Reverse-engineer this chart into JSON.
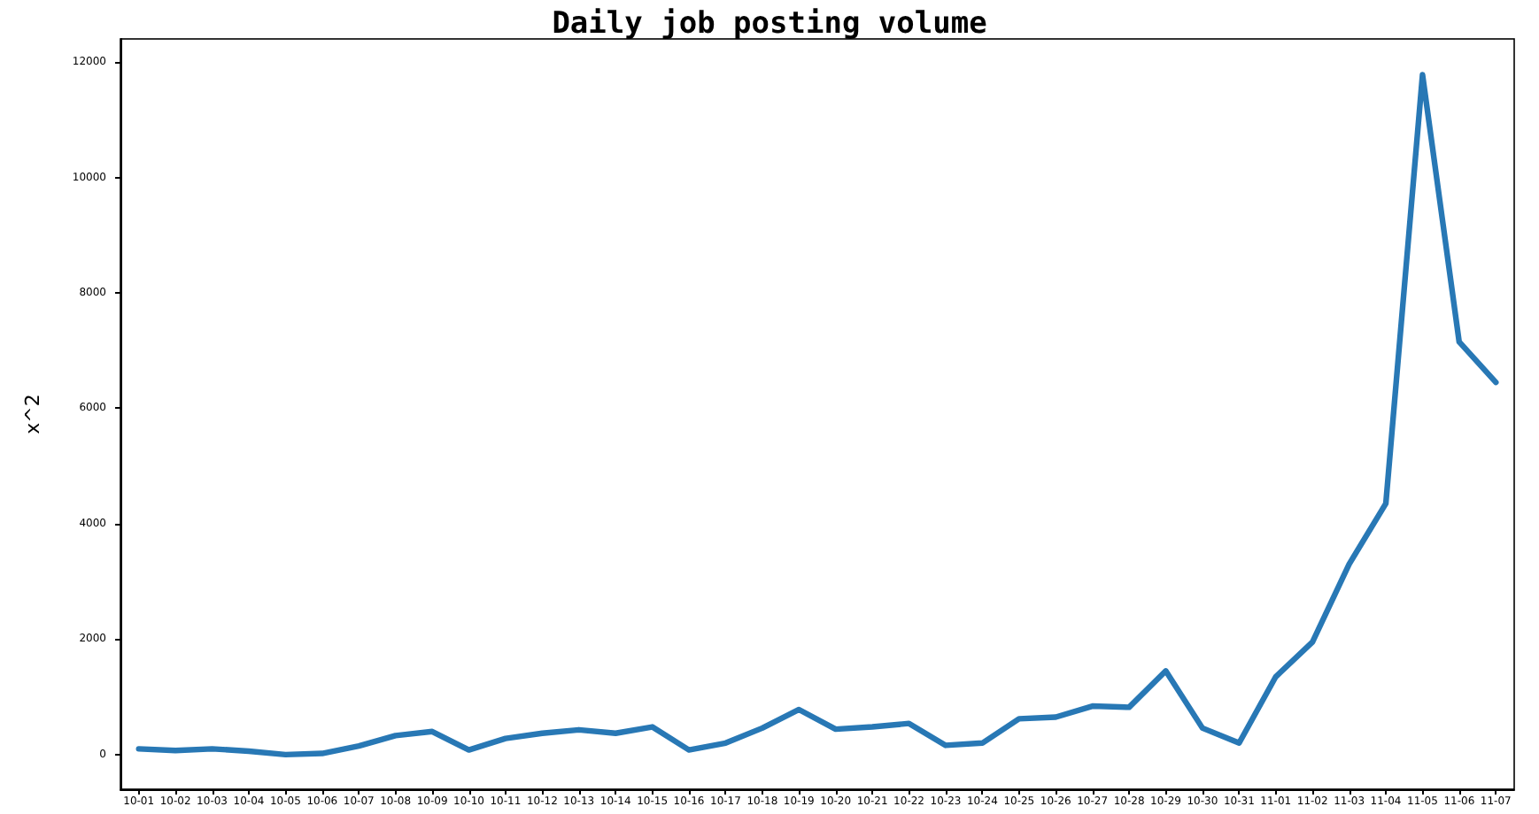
{
  "chart_data": {
    "type": "line",
    "title": "Daily job posting volume",
    "ylabel": "x^2",
    "categories": [
      "10-01",
      "10-02",
      "10-03",
      "10-04",
      "10-05",
      "10-06",
      "10-07",
      "10-08",
      "10-09",
      "10-10",
      "10-11",
      "10-12",
      "10-13",
      "10-14",
      "10-15",
      "10-16",
      "10-17",
      "10-18",
      "10-19",
      "10-20",
      "10-21",
      "10-22",
      "10-23",
      "10-24",
      "10-25",
      "10-26",
      "10-27",
      "10-28",
      "10-29",
      "10-30",
      "10-31",
      "11-01",
      "11-02",
      "11-03",
      "11-04",
      "11-05",
      "11-06",
      "11-07"
    ],
    "series": [
      {
        "color": "#2878b5",
        "values": [
          100,
          70,
          100,
          60,
          0,
          20,
          150,
          330,
          400,
          80,
          280,
          370,
          430,
          370,
          480,
          80,
          200,
          460,
          780,
          440,
          480,
          540,
          160,
          200,
          620,
          650,
          840,
          820,
          1450,
          460,
          200,
          1350,
          1950,
          3300,
          4350,
          11780,
          7150,
          6450
        ]
      }
    ],
    "ylim": [
      -600,
      12400
    ],
    "yticks": [
      0,
      2000,
      4000,
      6000,
      8000,
      10000,
      12000
    ],
    "grid": false,
    "marker": "none",
    "line_style": "solid"
  }
}
